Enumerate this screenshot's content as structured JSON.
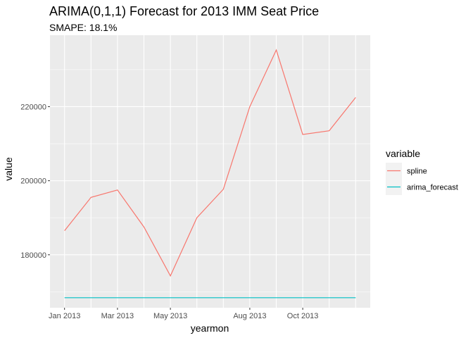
{
  "chart_data": {
    "type": "line",
    "title": "ARIMA(0,1,1) Forecast for 2013 IMM Seat Price",
    "subtitle": "SMAPE: 18.1%",
    "xlabel": "yearmon",
    "ylabel": "value",
    "x": [
      "2013-01",
      "2013-02",
      "2013-03",
      "2013-04",
      "2013-05",
      "2013-06",
      "2013-07",
      "2013-08",
      "2013-09",
      "2013-10",
      "2013-11",
      "2013-12"
    ],
    "x_tick_labels": [
      "Jan 2013",
      "Mar 2013",
      "May 2013",
      "Aug 2013",
      "Oct 2013"
    ],
    "x_tick_values": [
      "2013-01",
      "2013-03",
      "2013-05",
      "2013-08",
      "2013-10"
    ],
    "y_tick_values": [
      180000,
      200000,
      220000
    ],
    "y_tick_labels": [
      "180000",
      "200000",
      "220000"
    ],
    "ylim": [
      165700,
      239300
    ],
    "grid": true,
    "legend": {
      "title": "variable",
      "placement": "right"
    },
    "series": [
      {
        "name": "spline",
        "color": "#F8766D",
        "values": [
          186500,
          195500,
          197500,
          187500,
          174300,
          190000,
          197700,
          220000,
          235300,
          212500,
          213500,
          222500
        ]
      },
      {
        "name": "arima_forecast",
        "color": "#00BFC4",
        "values": [
          168400,
          168400,
          168400,
          168400,
          168400,
          168400,
          168400,
          168400,
          168400,
          168400,
          168400,
          168400
        ]
      }
    ],
    "panel_background": "#EBEBEB",
    "grid_color": "#FFFFFF"
  }
}
